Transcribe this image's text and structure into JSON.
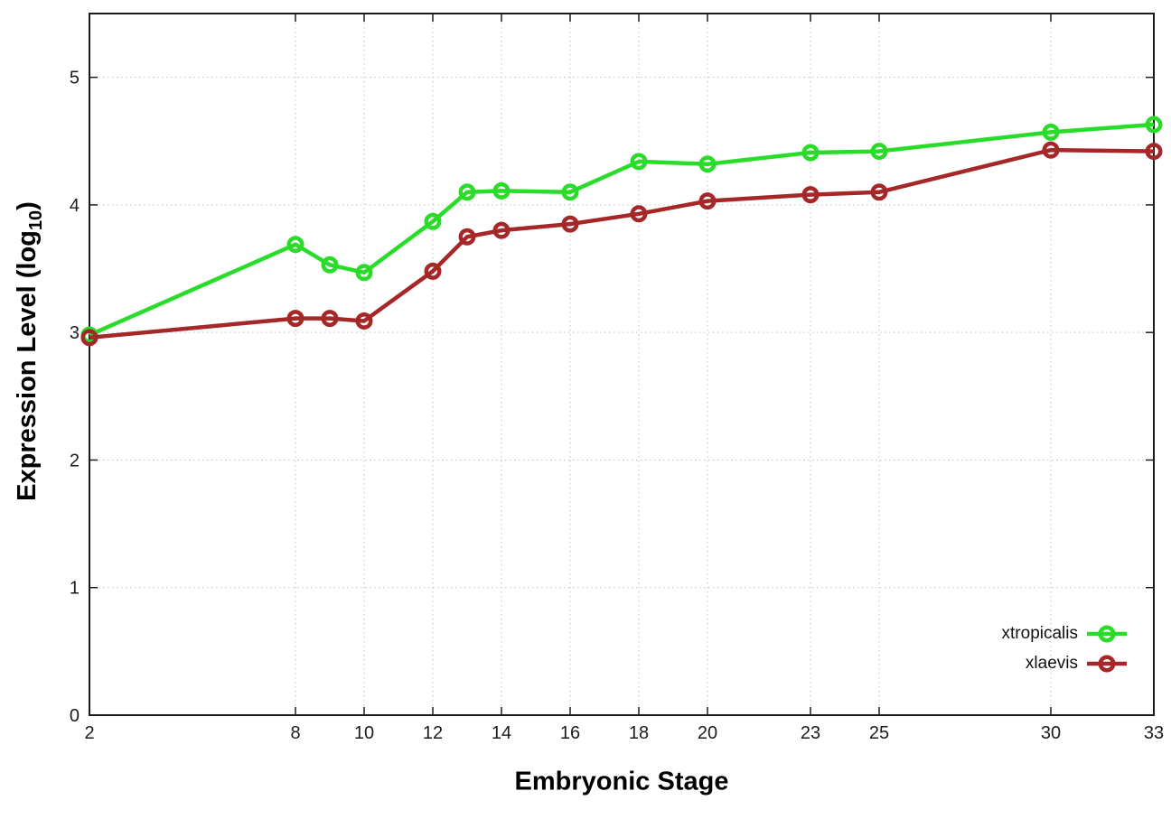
{
  "chart_data": {
    "type": "line",
    "title": "",
    "xlabel": "Embryonic Stage",
    "ylabel": "Expression Level (log10)",
    "ylabel_main": "Expression Level (log",
    "ylabel_sub": "10",
    "ylabel_end": ")",
    "x": [
      2,
      8,
      9,
      10,
      12,
      13,
      14,
      16,
      18,
      20,
      23,
      25,
      30,
      33
    ],
    "x_tick_values": [
      2,
      8,
      10,
      12,
      14,
      16,
      18,
      20,
      23,
      25,
      30,
      33
    ],
    "x_tick_labels": [
      "2",
      "8",
      "10",
      "12",
      "14",
      "16",
      "18",
      "20",
      "23",
      "25",
      "30",
      "33"
    ],
    "y_tick_values": [
      0,
      1,
      2,
      3,
      4,
      5
    ],
    "y_tick_labels": [
      "0",
      "1",
      "2",
      "3",
      "4",
      "5"
    ],
    "xlim": [
      2,
      33
    ],
    "ylim": [
      0,
      5.5
    ],
    "grid": true,
    "legend_position": "bottom-right",
    "series": [
      {
        "name": "xtropicalis",
        "color": "#29dc29",
        "values": [
          2.98,
          3.69,
          3.53,
          3.47,
          3.87,
          4.1,
          4.11,
          4.1,
          4.34,
          4.32,
          4.41,
          4.42,
          4.57,
          4.63
        ]
      },
      {
        "name": "xlaevis",
        "color": "#a52727",
        "values": [
          2.96,
          3.11,
          3.11,
          3.09,
          3.48,
          3.75,
          3.8,
          3.85,
          3.93,
          4.03,
          4.08,
          4.1,
          4.43,
          4.42
        ]
      }
    ],
    "axis_color": "#1c1c1c",
    "grid_color": "#bfbfbf",
    "background": "#ffffff"
  }
}
